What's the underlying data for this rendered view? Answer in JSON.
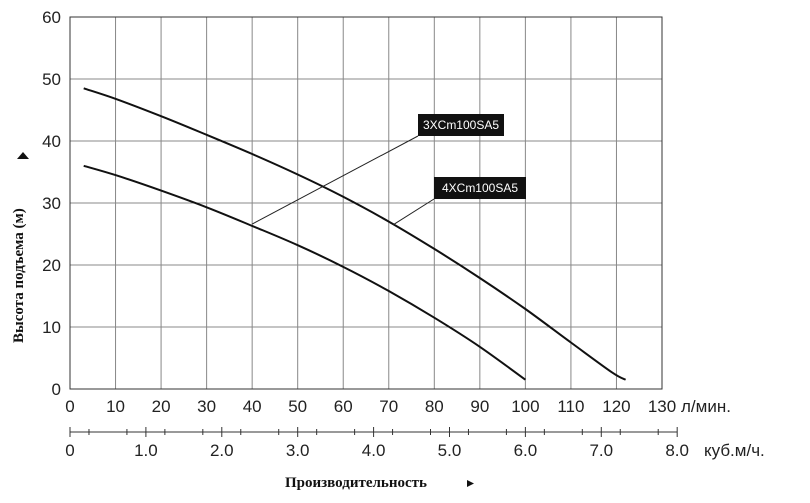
{
  "chart_data": {
    "type": "line",
    "ylabel": "Высота подъема (м)",
    "xlabel": "Производительность",
    "x_unit": "л/мин.",
    "x2_unit": "куб.м/ч.",
    "xlim": [
      0,
      130
    ],
    "ylim": [
      0,
      60
    ],
    "x_ticks": [
      "0",
      "10",
      "20",
      "30",
      "40",
      "50",
      "60",
      "70",
      "80",
      "90",
      "100",
      "110",
      "120",
      "130"
    ],
    "y_ticks": [
      "0",
      "10",
      "20",
      "30",
      "40",
      "50",
      "60"
    ],
    "x2_ticks": [
      "0",
      "1.0",
      "2.0",
      "3.0",
      "4.0",
      "5.0",
      "6.0",
      "7.0",
      "8.0"
    ],
    "grid": true,
    "series": [
      {
        "name": "3XCm100SA5",
        "x": [
          3,
          10,
          20,
          30,
          40,
          50,
          60,
          70,
          80,
          90,
          100
        ],
        "y": [
          36,
          34.5,
          32,
          29.3,
          26.3,
          23.2,
          19.7,
          15.8,
          11.5,
          6.8,
          1.5
        ]
      },
      {
        "name": "4XCm100SA5",
        "x": [
          3,
          10,
          20,
          30,
          40,
          50,
          60,
          70,
          80,
          90,
          100,
          110,
          119,
          122
        ],
        "y": [
          48.5,
          46.8,
          44,
          41,
          37.9,
          34.6,
          31,
          27,
          22.6,
          17.9,
          12.9,
          7.5,
          2.7,
          1.5
        ]
      }
    ],
    "labels": [
      {
        "series": "3XCm100SA5",
        "text": "3XCm100SA5"
      },
      {
        "series": "4XCm100SA5",
        "text": "4XCm100SA5"
      }
    ]
  }
}
